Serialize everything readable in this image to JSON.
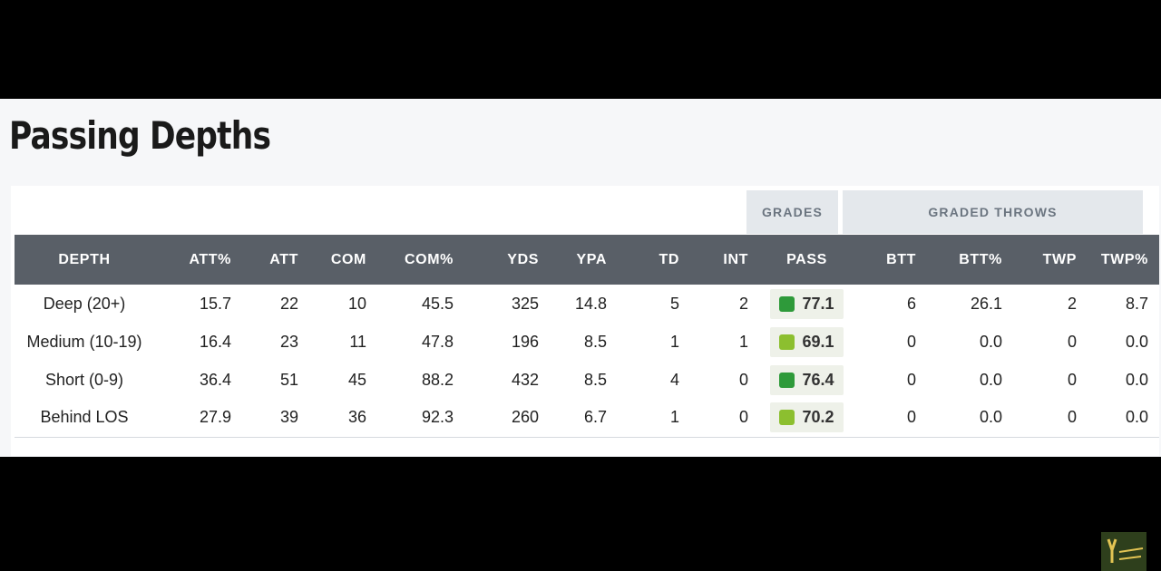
{
  "title": "Passing Depths",
  "groups": {
    "grades": "GRADES",
    "graded_throws": "GRADED THROWS"
  },
  "columns": [
    "DEPTH",
    "ATT%",
    "ATT",
    "COM",
    "COM%",
    "YDS",
    "YPA",
    "TD",
    "INT",
    "PASS",
    "BTT",
    "BTT%",
    "TWP",
    "TWP%"
  ],
  "rows": [
    {
      "depth": "Deep (20+)",
      "att_pct": "15.7",
      "att": "22",
      "com": "10",
      "com_pct": "45.5",
      "yds": "325",
      "ypa": "14.8",
      "td": "5",
      "int": "2",
      "pass": "77.1",
      "pass_color": "#2e9a3a",
      "btt": "6",
      "btt_pct": "26.1",
      "twp": "2",
      "twp_pct": "8.7"
    },
    {
      "depth": "Medium (10-19)",
      "att_pct": "16.4",
      "att": "23",
      "com": "11",
      "com_pct": "47.8",
      "yds": "196",
      "ypa": "8.5",
      "td": "1",
      "int": "1",
      "pass": "69.1",
      "pass_color": "#8cbf2f",
      "btt": "0",
      "btt_pct": "0.0",
      "twp": "0",
      "twp_pct": "0.0"
    },
    {
      "depth": "Short (0-9)",
      "att_pct": "36.4",
      "att": "51",
      "com": "45",
      "com_pct": "88.2",
      "yds": "432",
      "ypa": "8.5",
      "td": "4",
      "int": "0",
      "pass": "76.4",
      "pass_color": "#2e9a3a",
      "btt": "0",
      "btt_pct": "0.0",
      "twp": "0",
      "twp_pct": "0.0"
    },
    {
      "depth": "Behind LOS",
      "att_pct": "27.9",
      "att": "39",
      "com": "36",
      "com_pct": "92.3",
      "yds": "260",
      "ypa": "6.7",
      "td": "1",
      "int": "0",
      "pass": "70.2",
      "pass_color": "#8cbf2f",
      "btt": "0",
      "btt_pct": "0.0",
      "twp": "0",
      "twp_pct": "0.0"
    }
  ]
}
